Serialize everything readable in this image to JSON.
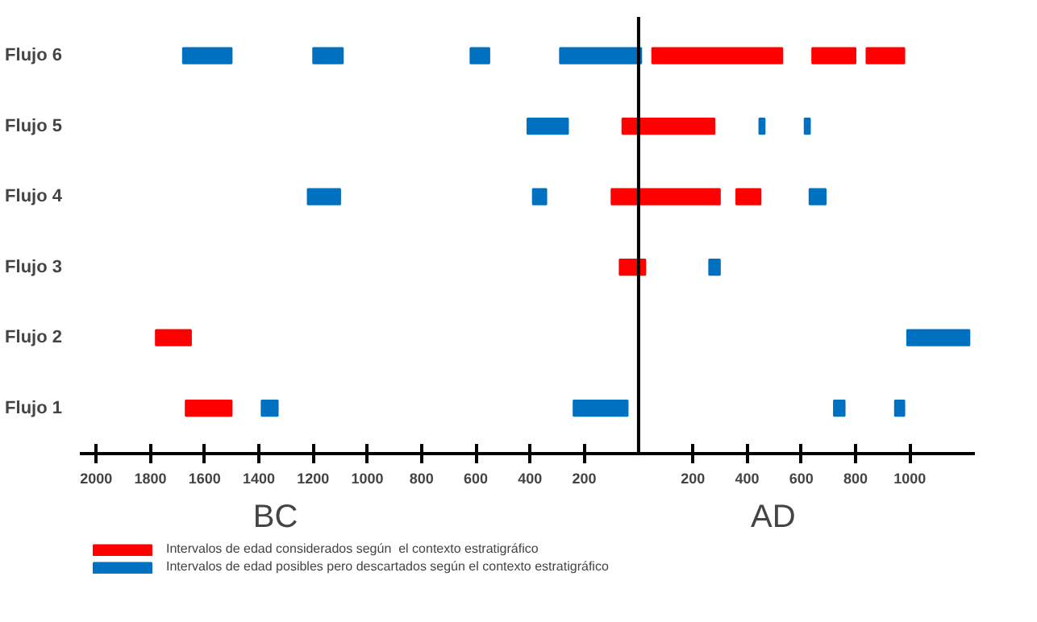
{
  "chart_data": {
    "type": "bar",
    "orientation": "horizontal",
    "categories": [
      "Flujo 6",
      "Flujo 5",
      "Flujo 4",
      "Flujo 3",
      "Flujo 2",
      "Flujo 1"
    ],
    "series": [
      {
        "name": "Intervalos de edad considerados según  el contexto estratigráfico",
        "color": "#ff0000",
        "base": [
          50,
          -60,
          -100,
          -70,
          -1780,
          -1670
        ],
        "values": [
          480,
          340,
          400,
          95,
          130,
          170
        ]
      },
      {
        "color": "#ff0000",
        "base": [
          640,
          null,
          360,
          null,
          null,
          null
        ],
        "values": [
          160,
          null,
          90,
          null,
          null,
          null
        ]
      },
      {
        "color": "#ff0000",
        "base": [
          840,
          null,
          null,
          null,
          null,
          null
        ],
        "values": [
          140,
          null,
          null,
          null,
          null,
          null
        ]
      },
      {
        "name": "Intervalos de edad posibles pero descartados según el contexto estratigráfico",
        "color": "#0070c0",
        "base": [
          -1680,
          -410,
          -1220,
          260,
          990,
          -1390
        ],
        "values": [
          180,
          150,
          120,
          40,
          230,
          60
        ]
      },
      {
        "color": "#0070c0",
        "base": [
          -1200,
          445,
          -390,
          null,
          null,
          -240
        ],
        "values": [
          110,
          20,
          50,
          null,
          null,
          200
        ]
      },
      {
        "color": "#0070c0",
        "base": [
          -620,
          612,
          630,
          null,
          null,
          720
        ],
        "values": [
          70,
          20,
          60,
          null,
          null,
          40
        ]
      },
      {
        "color": "#0070c0",
        "base": [
          -290,
          null,
          null,
          null,
          null,
          945
        ],
        "values": [
          300,
          null,
          null,
          null,
          null,
          35
        ]
      }
    ],
    "xlim": [
      -2060,
      1240
    ],
    "xticks": [
      {
        "value": -2000,
        "label": "2000"
      },
      {
        "value": -1800,
        "label": "1800"
      },
      {
        "value": -1600,
        "label": "1600"
      },
      {
        "value": -1400,
        "label": "1400"
      },
      {
        "value": -1200,
        "label": "1200"
      },
      {
        "value": -1000,
        "label": "1000"
      },
      {
        "value": -800,
        "label": "800"
      },
      {
        "value": -600,
        "label": "600"
      },
      {
        "value": -400,
        "label": "400"
      },
      {
        "value": -200,
        "label": "200"
      },
      200,
      400,
      600,
      800,
      1000
    ],
    "ref_lines": [
      {
        "axis": "x",
        "value": 0,
        "color": "#000000"
      }
    ],
    "annotations": [
      "BC",
      "AD"
    ],
    "grid": false,
    "legend": "bottom"
  }
}
